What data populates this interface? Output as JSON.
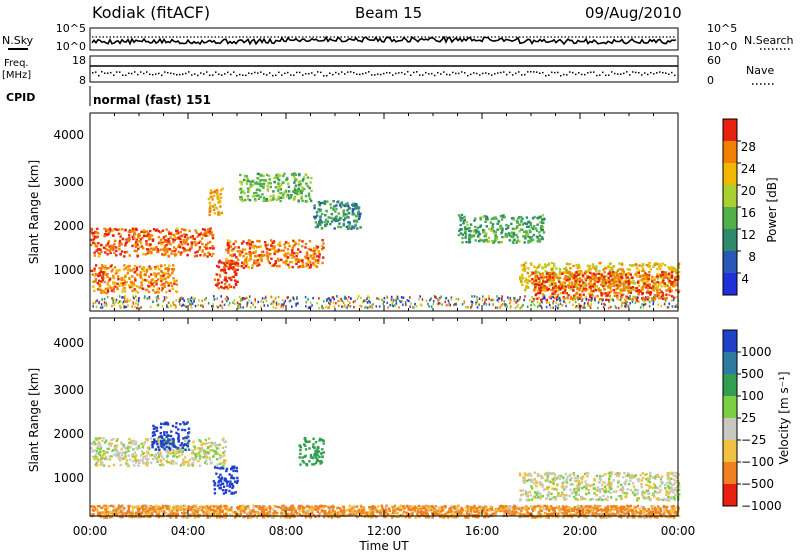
{
  "header": {
    "station": "Kodiak (fitACF)",
    "beam": "Beam 15",
    "date": "09/Aug/2010"
  },
  "noise_panel": {
    "left_label": "N.Sky",
    "right_label": "N.Search",
    "left_ticks": [
      "10^5",
      "10^0"
    ],
    "right_ticks": [
      "10^5",
      "10^0"
    ]
  },
  "freq_panel": {
    "left_label_line1": "Freq.",
    "left_label_line2": "[MHz]",
    "right_label": "Nave",
    "left_ticks": [
      "18",
      "8"
    ],
    "right_ticks": [
      "60",
      "0"
    ]
  },
  "cpid": {
    "label": "CPID",
    "value": "normal (fast) 151"
  },
  "x_axis": {
    "title": "Time UT",
    "ticks": [
      "00:00",
      "04:00",
      "08:00",
      "12:00",
      "16:00",
      "20:00",
      "00:00"
    ]
  },
  "power_panel": {
    "ylabel": "Slant Range [km]",
    "yticks": [
      "1000",
      "2000",
      "3000",
      "4000"
    ],
    "colorbar_label": "Power [dB]",
    "colorbar_ticks": [
      "28",
      "24",
      "20",
      "16",
      "12",
      "8",
      "4"
    ],
    "colors": [
      "#2030d8",
      "#2858b8",
      "#2e8a6a",
      "#52b04a",
      "#a8d030",
      "#f0b800",
      "#f08000",
      "#e82010"
    ]
  },
  "velocity_panel": {
    "ylabel": "Slant Range [km]",
    "yticks": [
      "1000",
      "2000",
      "3000",
      "4000"
    ],
    "colorbar_label": "Velocity [m s⁻¹]",
    "colorbar_ticks": [
      "1000",
      "500",
      "100",
      "25",
      "−25",
      "−100",
      "−500",
      "−1000"
    ],
    "colors": [
      "#2040c8",
      "#2e7aa0",
      "#30a050",
      "#7ad040",
      "#c8c8c0",
      "#f0c040",
      "#f08020",
      "#e82010"
    ]
  },
  "chart_data": {
    "type": "heatmap",
    "title": "Kodiak (fitACF)",
    "xlabel": "Time UT",
    "ylabel": "Slant Range [km]",
    "xlim": [
      0,
      24
    ],
    "ylim": [
      180,
      4500
    ],
    "power_range_db": [
      0,
      30
    ],
    "velocity_range_ms": [
      -1000,
      1000
    ],
    "power_echo_regions": [
      {
        "t_start": 0.0,
        "t_end": 5.0,
        "range_km": 1700,
        "power_db": 26
      },
      {
        "t_start": 0.0,
        "t_end": 3.5,
        "range_km": 900,
        "power_db": 24
      },
      {
        "t_start": 5.5,
        "t_end": 9.5,
        "range_km": 1450,
        "power_db": 25
      },
      {
        "t_start": 5.0,
        "t_end": 6.0,
        "range_km": 1000,
        "power_db": 28
      },
      {
        "t_start": 4.8,
        "t_end": 5.4,
        "range_km": 2600,
        "power_db": 22
      },
      {
        "t_start": 6.0,
        "t_end": 9.0,
        "range_km": 2900,
        "power_db": 14
      },
      {
        "t_start": 9.0,
        "t_end": 11.0,
        "range_km": 2300,
        "power_db": 10
      },
      {
        "t_start": 15.0,
        "t_end": 18.5,
        "range_km": 2000,
        "power_db": 12
      },
      {
        "t_start": 17.5,
        "t_end": 24.0,
        "range_km": 950,
        "power_db": 20
      },
      {
        "t_start": 18.0,
        "t_end": 24.0,
        "range_km": 750,
        "power_db": 26
      }
    ],
    "velocity_echo_regions": [
      {
        "t_start": 0.0,
        "t_end": 5.5,
        "range_km": 1600,
        "velocity_ms": 0
      },
      {
        "t_start": 2.5,
        "t_end": 4.0,
        "range_km": 1950,
        "velocity_ms": 800
      },
      {
        "t_start": 5.0,
        "t_end": 6.0,
        "range_km": 1000,
        "velocity_ms": 1000
      },
      {
        "t_start": 8.5,
        "t_end": 9.5,
        "range_km": 1600,
        "velocity_ms": 150
      },
      {
        "t_start": 17.5,
        "t_end": 24.0,
        "range_km": 850,
        "velocity_ms": 0
      },
      {
        "t_start": 0.0,
        "t_end": 24.0,
        "range_km": 300,
        "velocity_ms": -80
      }
    ]
  }
}
